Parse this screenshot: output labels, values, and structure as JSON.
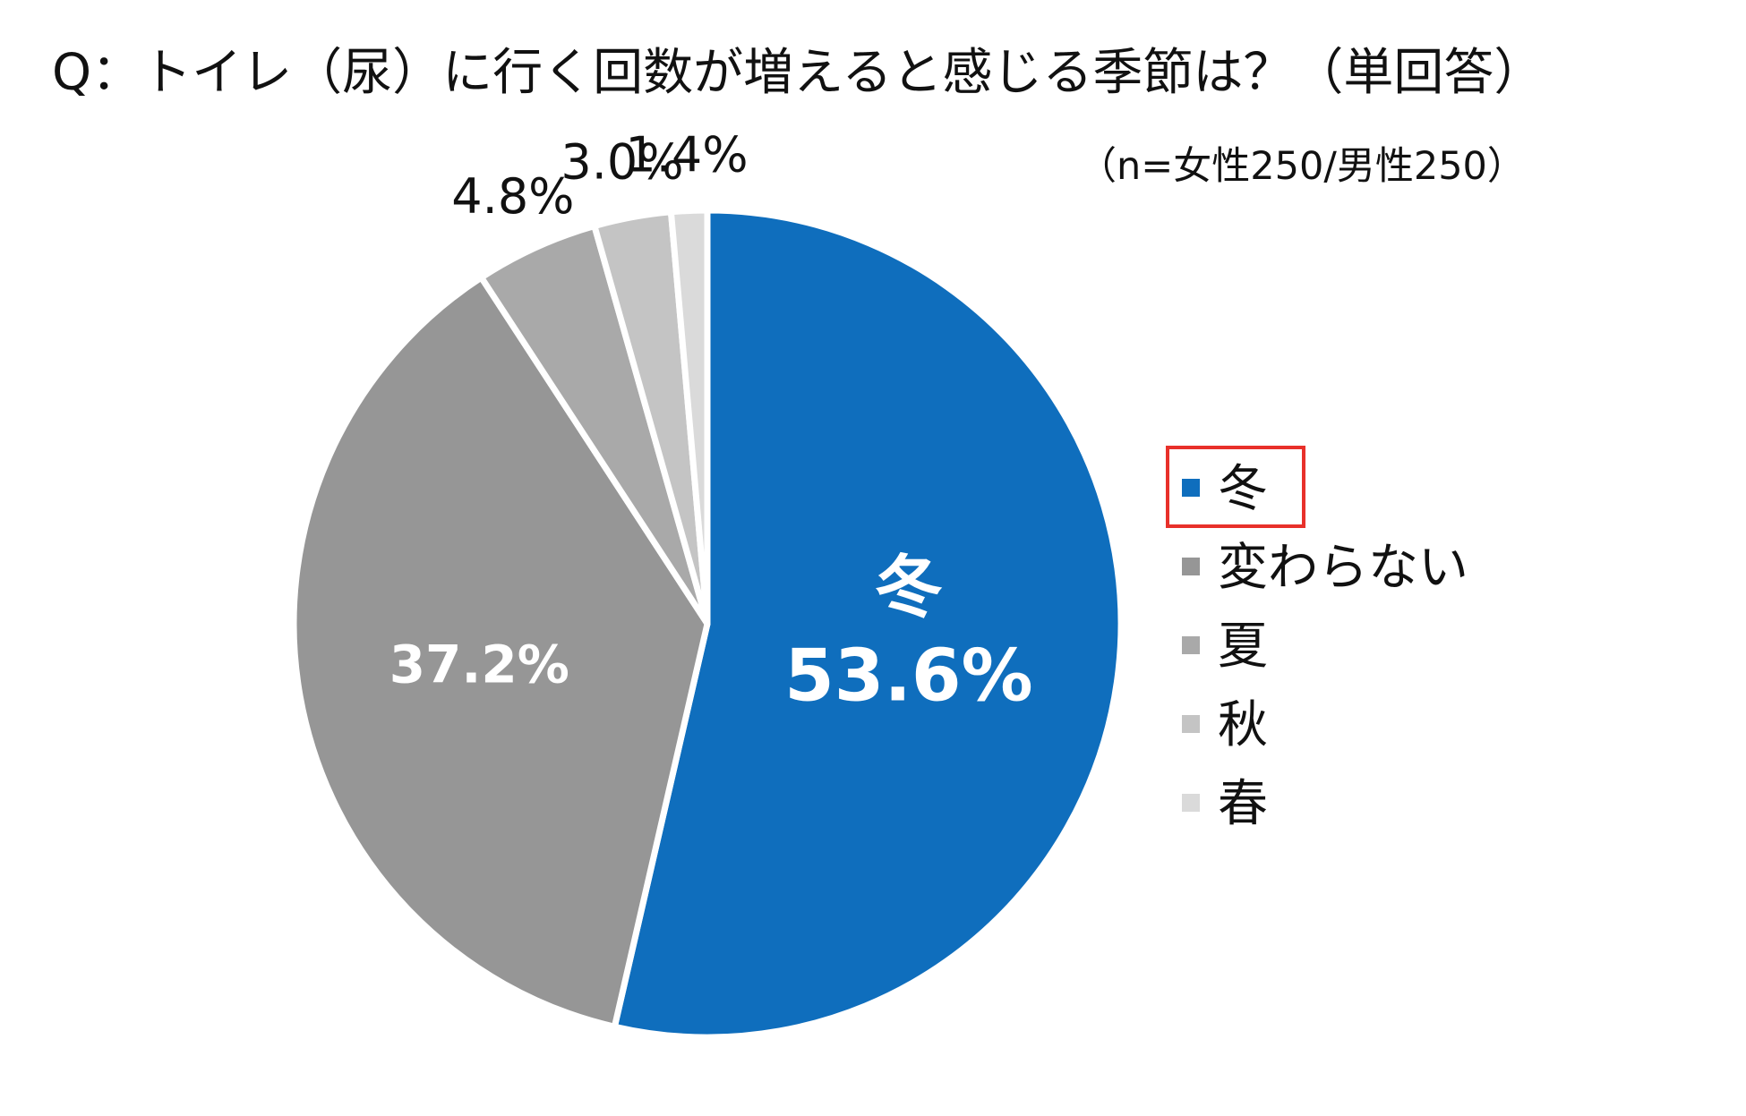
{
  "chart_data": {
    "type": "pie",
    "title": "Q：トイレ（尿）に行く回数が増えると感じる季節は？（単回答）",
    "subtitle": "（n=女性250/男性250）",
    "categories": [
      "冬",
      "変わらない",
      "夏",
      "秋",
      "春"
    ],
    "values": [
      53.6,
      37.2,
      4.8,
      3.0,
      1.4
    ],
    "labels": [
      "53.6%",
      "37.2%",
      "4.8%",
      "3.0%",
      "1.4%"
    ],
    "colors": [
      "#0f6ebd",
      "#969696",
      "#a9a9a9",
      "#c4c4c4",
      "#dadada"
    ],
    "start_angle": "12 o'clock",
    "direction": "clockwise",
    "highlighted_slice_label": "冬",
    "legend": {
      "position": "right",
      "highlighted": "冬",
      "highlight_color": "#e8302a"
    }
  }
}
